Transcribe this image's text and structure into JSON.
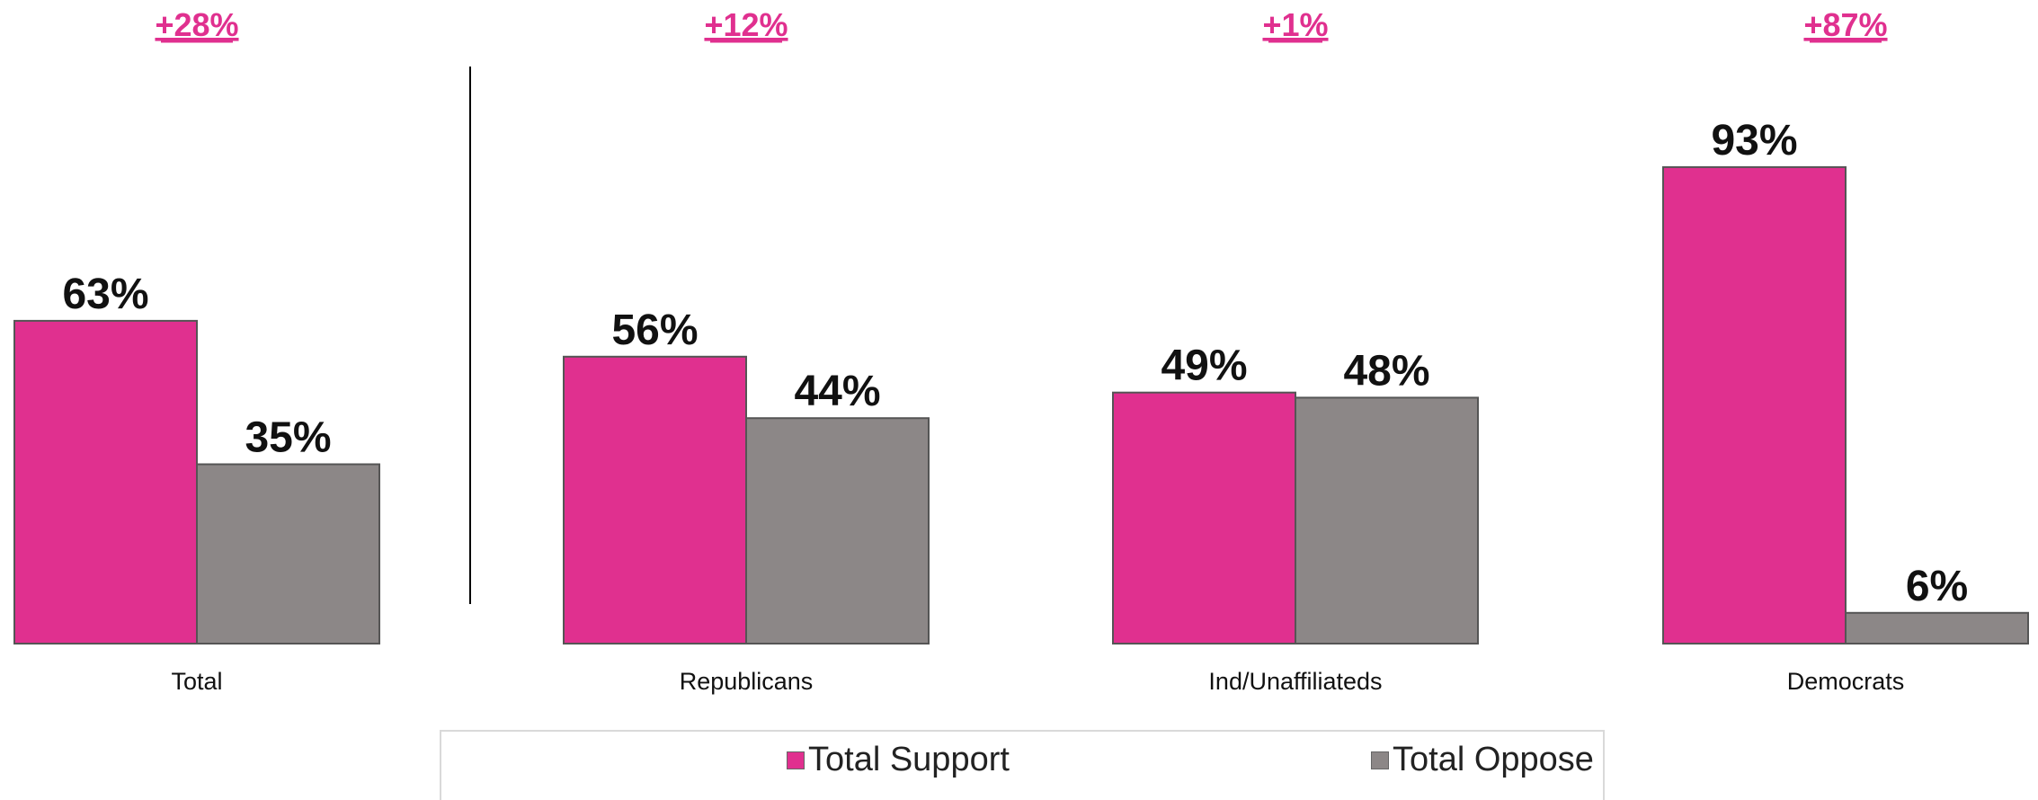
{
  "chart_data": {
    "type": "bar",
    "categories": [
      "Total",
      "Republicans",
      "Ind/Unaffiliateds",
      "Democrats"
    ],
    "series": [
      {
        "name": "Total Support",
        "values": [
          63,
          56,
          49,
          93
        ],
        "color": "#e0308f"
      },
      {
        "name": "Total Oppose",
        "values": [
          35,
          44,
          48,
          6
        ],
        "color": "#8c8787"
      }
    ],
    "value_labels": [
      [
        "63%",
        "56%",
        "49%",
        "93%"
      ],
      [
        "35%",
        "44%",
        "48%",
        "6%"
      ]
    ],
    "net_labels": [
      "+28%",
      "+12%",
      "+1%",
      "+87%"
    ],
    "net_color": "#e0308f",
    "ylim": [
      0,
      100
    ],
    "grid": false,
    "legend_position": "bottom"
  }
}
